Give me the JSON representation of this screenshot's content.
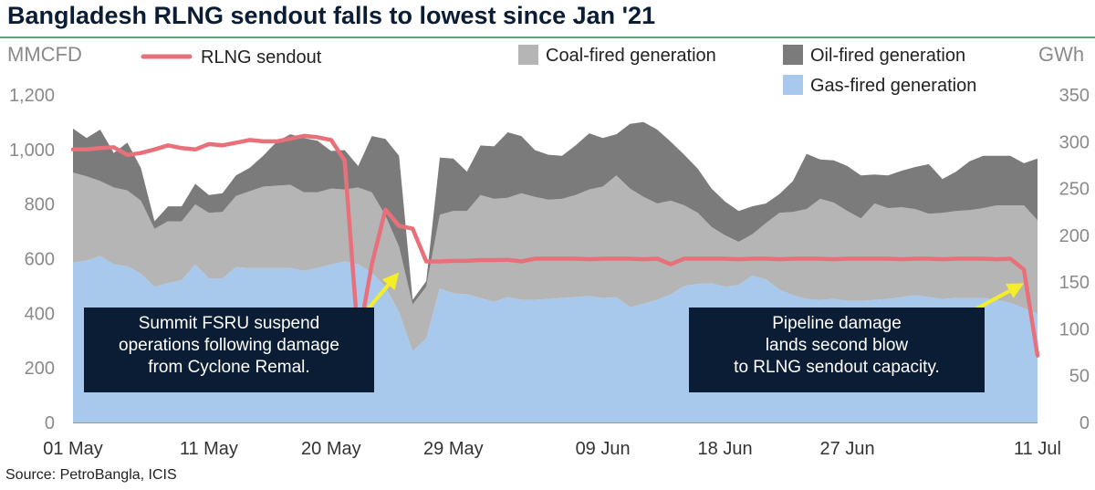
{
  "title": "Bangladesh RLNG sendout falls to lowest since Jan '21",
  "source": "Source: PetroBangla, ICIS",
  "colors": {
    "rlng": "#e8707a",
    "gas": "#a9c9ec",
    "coal": "#b5b5b5",
    "oil": "#7b7b7b",
    "annotation_bg": "#0b1d34",
    "arrow": "#f4ee2a",
    "title_rule": "#5aa77c"
  },
  "chart_data": {
    "type": "area",
    "y_left": {
      "label": "MMCFD",
      "range": [
        0,
        1200
      ],
      "ticks": [
        "0",
        "200",
        "400",
        "600",
        "800",
        "1,000",
        "1,200"
      ]
    },
    "y_right": {
      "label": "GWh",
      "range": [
        0,
        350
      ],
      "ticks": [
        "0",
        "50",
        "100",
        "150",
        "200",
        "250",
        "300",
        "350"
      ]
    },
    "x_ticks": [
      {
        "label": "01 May",
        "day": 0
      },
      {
        "label": "11 May",
        "day": 10
      },
      {
        "label": "20 May",
        "day": 19
      },
      {
        "label": "29 May",
        "day": 28
      },
      {
        "label": "09 Jun",
        "day": 39
      },
      {
        "label": "18 Jun",
        "day": 48
      },
      {
        "label": "27 Jun",
        "day": 57
      },
      {
        "label": "11 Jul",
        "day": 71
      }
    ],
    "x_range": [
      0,
      71
    ],
    "stacked_series": [
      {
        "name": "Gas-fired generation",
        "axis": "right",
        "color": "#a9c9ec",
        "values": [
          171,
          173,
          178,
          169,
          167,
          159,
          145,
          149,
          152,
          169,
          154,
          154,
          166,
          165,
          165,
          165,
          165,
          162,
          165,
          169,
          172,
          169,
          160,
          145,
          118,
          76,
          90,
          143,
          138,
          137,
          133,
          129,
          134,
          131,
          131,
          132,
          133,
          134,
          135,
          133,
          134,
          123,
          127,
          131,
          137,
          146,
          148,
          149,
          145,
          147,
          157,
          153,
          142,
          136,
          132,
          131,
          132,
          130,
          130,
          131,
          132,
          134,
          136,
          134,
          132,
          133,
          133,
          133,
          131,
          128,
          122,
          116
        ]
      },
      {
        "name": "Coal-fired generation",
        "axis": "right",
        "color": "#b5b5b5",
        "values": [
          96,
          90,
          80,
          82,
          81,
          78,
          62,
          66,
          63,
          64,
          70,
          71,
          76,
          82,
          87,
          88,
          89,
          84,
          81,
          81,
          77,
          82,
          86,
          76,
          70,
          50,
          55,
          79,
          88,
          89,
          110,
          110,
          106,
          114,
          110,
          106,
          106,
          109,
          114,
          119,
          130,
          127,
          114,
          103,
          100,
          86,
          76,
          60,
          55,
          46,
          44,
          60,
          82,
          89,
          96,
          108,
          103,
          96,
          88,
          103,
          97,
          96,
          92,
          89,
          92,
          93,
          94,
          96,
          101,
          104,
          110,
          100
        ]
      },
      {
        "name": "Oil-fired generation",
        "axis": "right",
        "color": "#7b7b7b",
        "values": [
          47,
          41,
          55,
          37,
          51,
          35,
          8,
          16,
          16,
          22,
          19,
          20,
          22,
          25,
          33,
          47,
          54,
          58,
          55,
          40,
          42,
          23,
          60,
          82,
          97,
          5,
          6,
          61,
          56,
          42,
          53,
          56,
          70,
          61,
          50,
          48,
          46,
          53,
          60,
          52,
          44,
          69,
          80,
          79,
          63,
          54,
          47,
          41,
          36,
          33,
          30,
          21,
          20,
          33,
          59,
          42,
          45,
          48,
          46,
          31,
          35,
          39,
          45,
          53,
          36,
          42,
          52,
          56,
          53,
          53,
          45,
          66
        ]
      }
    ],
    "line_series": {
      "name": "RLNG sendout",
      "axis": "left",
      "color": "#e8707a",
      "values": [
        1000,
        1000,
        1005,
        1008,
        980,
        987,
        1000,
        1015,
        1005,
        1000,
        1020,
        1015,
        1025,
        1035,
        1030,
        1030,
        1040,
        1050,
        1045,
        1035,
        960,
        300,
        580,
        780,
        720,
        710,
        590,
        590,
        592,
        592,
        595,
        595,
        596,
        590,
        600,
        600,
        600,
        600,
        598,
        600,
        600,
        600,
        598,
        600,
        580,
        600,
        600,
        600,
        600,
        598,
        600,
        600,
        598,
        600,
        600,
        600,
        598,
        600,
        600,
        600,
        600,
        598,
        600,
        600,
        598,
        600,
        600,
        600,
        598,
        600,
        560,
        245
      ]
    },
    "legend": [
      "RLNG sendout",
      "Coal-fired generation",
      "Oil-fired generation",
      "Gas-fired generation"
    ],
    "annotations": [
      {
        "text": [
          "Summit FSRU suspend",
          "operations following damage",
          "from Cyclone Remal."
        ],
        "arrow_to_day": 24,
        "arrow_to_value": 550
      },
      {
        "text": [
          "Pipeline damage",
          "lands second blow",
          "to RLNG sendout capacity."
        ],
        "arrow_to_day": 70,
        "arrow_to_value": 510
      }
    ]
  }
}
